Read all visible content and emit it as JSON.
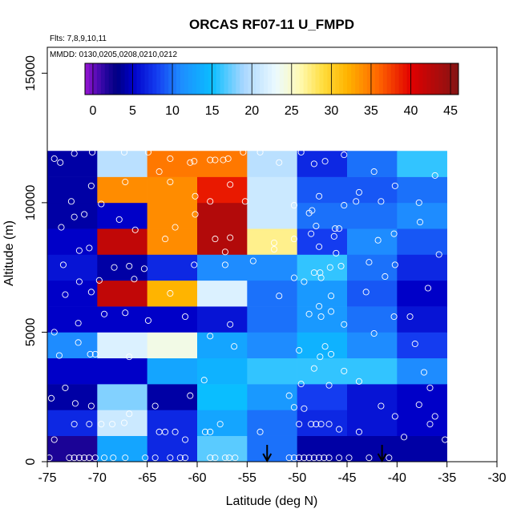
{
  "chart_data": {
    "type": "heatmap",
    "title": "ORCAS RF07-11 U_FMPD",
    "flights_note": "Flts: 7,8,9,10,11",
    "dates_note": "MMDD: 0130,0205,0208,0210,0212",
    "xlabel": "Latitude (deg N)",
    "ylabel": "Altitude (m)",
    "xlim": [
      -75,
      -30
    ],
    "ylim": [
      0,
      16000
    ],
    "x_ticks": [
      -75,
      -70,
      -65,
      -60,
      -55,
      -50,
      -45,
      -40,
      -35,
      -30
    ],
    "x_tick_labels": [
      "-75",
      "-70",
      "-65",
      "-60",
      "-55",
      "-50",
      "-45",
      "-40",
      "-35",
      "-30"
    ],
    "y_ticks": [
      0,
      5000,
      10000,
      15000
    ],
    "y_tick_labels": [
      "0",
      "5000",
      "10000",
      "15000"
    ],
    "colorbar": {
      "range": [
        -1,
        46
      ],
      "ticks": [
        0,
        5,
        10,
        15,
        20,
        25,
        30,
        35,
        40,
        45
      ],
      "tick_labels": [
        "0",
        "5",
        "10",
        "15",
        "20",
        "25",
        "30",
        "35",
        "40",
        "45"
      ]
    },
    "lat_bins": [
      -75,
      -70,
      -65,
      -60,
      -55,
      -50,
      -45,
      -40,
      -35
    ],
    "alt_bin_size": 1000,
    "alt_bins_count": 12,
    "grid_values_by_altitude_bin": [
      [
        2,
        13,
        7,
        17,
        10,
        4,
        4,
        4
      ],
      [
        7,
        21,
        7,
        13,
        10,
        7,
        6,
        5
      ],
      [
        4,
        18,
        4,
        15,
        12,
        8,
        6,
        5
      ],
      [
        5,
        5,
        13,
        14,
        16,
        16,
        16,
        11
      ],
      [
        11,
        22,
        24,
        13,
        11,
        14,
        11,
        8
      ],
      [
        5,
        5,
        5,
        6,
        10,
        12,
        10,
        6
      ],
      [
        5,
        42,
        32,
        22,
        10,
        12,
        9,
        5
      ],
      [
        6,
        4,
        7,
        11,
        11,
        16,
        10,
        7
      ],
      [
        5,
        42,
        34,
        43,
        27,
        8,
        11,
        9
      ],
      [
        4,
        5,
        34,
        43,
        21,
        10,
        10,
        11
      ],
      [
        4,
        34,
        34,
        39,
        21,
        9,
        9,
        10
      ],
      [
        4,
        20,
        35,
        35,
        20,
        7,
        10,
        16
      ]
    ],
    "arrow_latitudes": [
      -53,
      -41.5
    ],
    "samples": [
      [
        -74.8,
        150
      ],
      [
        -74.3,
        850
      ],
      [
        -72.8,
        150
      ],
      [
        -72.3,
        150
      ],
      [
        -71.8,
        150
      ],
      [
        -71.3,
        150
      ],
      [
        -70.8,
        150
      ],
      [
        -70.2,
        150
      ],
      [
        -69.3,
        150
      ],
      [
        -68.4,
        150
      ],
      [
        -67.2,
        150
      ],
      [
        -65.2,
        150
      ],
      [
        -64.2,
        150
      ],
      [
        -62.7,
        150
      ],
      [
        -61.7,
        150
      ],
      [
        -61.2,
        150
      ],
      [
        -58.7,
        150
      ],
      [
        -58.2,
        150
      ],
      [
        -57.2,
        150
      ],
      [
        -56.8,
        150
      ],
      [
        -56.2,
        150
      ],
      [
        -50.8,
        150
      ],
      [
        -50.3,
        150
      ],
      [
        -49.8,
        150
      ],
      [
        -49.3,
        150
      ],
      [
        -48.8,
        150
      ],
      [
        -48.3,
        150
      ],
      [
        -47.8,
        150
      ],
      [
        -47.3,
        150
      ],
      [
        -46.8,
        150
      ],
      [
        -45.8,
        150
      ],
      [
        -44.8,
        150
      ],
      [
        -42.8,
        150
      ],
      [
        -40.8,
        150
      ],
      [
        -63.8,
        1150
      ],
      [
        -63.2,
        1150
      ],
      [
        -62.2,
        1150
      ],
      [
        -61.2,
        850
      ],
      [
        -59.2,
        1150
      ],
      [
        -72.3,
        1450
      ],
      [
        -70.8,
        1450
      ],
      [
        -69.6,
        1450
      ],
      [
        -68.5,
        1450
      ],
      [
        -67.3,
        1500
      ],
      [
        -66.8,
        1850
      ],
      [
        -58.7,
        1150
      ],
      [
        -57.7,
        1450
      ],
      [
        -53.7,
        1150
      ],
      [
        -49.8,
        1450
      ],
      [
        -49.3,
        2050
      ],
      [
        -48.6,
        1450
      ],
      [
        -48.1,
        1450
      ],
      [
        -47.6,
        1450
      ],
      [
        -46.8,
        1450
      ],
      [
        -45.8,
        1250
      ],
      [
        -43.8,
        1150
      ],
      [
        -40.2,
        1750
      ],
      [
        -39.3,
        950
      ],
      [
        -36.2,
        1750
      ],
      [
        -36.7,
        1450
      ],
      [
        -35.2,
        850
      ],
      [
        -74.6,
        2450
      ],
      [
        -73.2,
        2850
      ],
      [
        -72.2,
        2250
      ],
      [
        -70.6,
        2150
      ],
      [
        -64.2,
        2150
      ],
      [
        -60.7,
        2550
      ],
      [
        -59.3,
        3150
      ],
      [
        -50.8,
        2550
      ],
      [
        -50.3,
        2100
      ],
      [
        -49.6,
        3000
      ],
      [
        -48.3,
        3600
      ],
      [
        -46.8,
        2950
      ],
      [
        -45.3,
        3500
      ],
      [
        -43.8,
        3100
      ],
      [
        -41.6,
        2150
      ],
      [
        -37.3,
        3450
      ],
      [
        -36.7,
        2850
      ],
      [
        -37.8,
        2200
      ],
      [
        -73.8,
        4100
      ],
      [
        -71.9,
        4600
      ],
      [
        -70.7,
        4150
      ],
      [
        -70.2,
        4150
      ],
      [
        -66.8,
        4050
      ],
      [
        -58.7,
        4850
      ],
      [
        -56.3,
        4450
      ],
      [
        -49.8,
        4300
      ],
      [
        -47.7,
        4050
      ],
      [
        -47.2,
        4450
      ],
      [
        -46.6,
        4150
      ],
      [
        -38.2,
        4550
      ],
      [
        -42.3,
        4950
      ],
      [
        -74.3,
        5000
      ],
      [
        -71.9,
        5350
      ],
      [
        -69.3,
        5700
      ],
      [
        -67.2,
        5750
      ],
      [
        -64.9,
        5450
      ],
      [
        -61.2,
        5600
      ],
      [
        -56.7,
        5300
      ],
      [
        -48.8,
        5700
      ],
      [
        -47.6,
        5600
      ],
      [
        -47.8,
        6000
      ],
      [
        -46.6,
        5800
      ],
      [
        -45.3,
        5300
      ],
      [
        -40.3,
        5600
      ],
      [
        -38.7,
        5600
      ],
      [
        -73.2,
        6450
      ],
      [
        -71.8,
        6950
      ],
      [
        -70.6,
        6550
      ],
      [
        -69.8,
        7000
      ],
      [
        -66.3,
        7050
      ],
      [
        -62.7,
        6500
      ],
      [
        -51.8,
        6400
      ],
      [
        -49.3,
        6950
      ],
      [
        -48.3,
        7300
      ],
      [
        -47.6,
        7100
      ],
      [
        -46.6,
        6400
      ],
      [
        -43.1,
        6550
      ],
      [
        -41.2,
        7150
      ],
      [
        -36.9,
        6700
      ],
      [
        -73.4,
        7600
      ],
      [
        -71.8,
        8150
      ],
      [
        -70.8,
        8250
      ],
      [
        -68.3,
        7500
      ],
      [
        -66.8,
        7550
      ],
      [
        -65.3,
        7450
      ],
      [
        -60.3,
        7600
      ],
      [
        -57.2,
        7600
      ],
      [
        -54.4,
        7750
      ],
      [
        -52.3,
        8200
      ],
      [
        -50.3,
        7100
      ],
      [
        -47.7,
        7300
      ],
      [
        -46.7,
        7500
      ],
      [
        -45.6,
        7550
      ],
      [
        -42.8,
        7700
      ],
      [
        -40.2,
        7600
      ],
      [
        -35.8,
        8000
      ],
      [
        -73.6,
        9050
      ],
      [
        -72.3,
        9450
      ],
      [
        -71.3,
        9550
      ],
      [
        -69.6,
        9950
      ],
      [
        -67.8,
        9350
      ],
      [
        -66.2,
        8950
      ],
      [
        -63.2,
        8600
      ],
      [
        -62.2,
        9050
      ],
      [
        -60.2,
        9550
      ],
      [
        -58.2,
        8600
      ],
      [
        -57.2,
        8100
      ],
      [
        -56.7,
        8650
      ],
      [
        -52.3,
        8450
      ],
      [
        -50.3,
        8600
      ],
      [
        -48.6,
        8800
      ],
      [
        -47.8,
        8300
      ],
      [
        -46.3,
        8700
      ],
      [
        -46.1,
        8050
      ],
      [
        -41.9,
        8550
      ],
      [
        -40.3,
        8800
      ],
      [
        -37.7,
        9250
      ],
      [
        -72.6,
        10050
      ],
      [
        -70.6,
        10650
      ],
      [
        -67.2,
        10800
      ],
      [
        -63.8,
        11200
      ],
      [
        -62.7,
        10800
      ],
      [
        -60.2,
        10250
      ],
      [
        -58.7,
        10050
      ],
      [
        -56.7,
        10700
      ],
      [
        -55.2,
        10050
      ],
      [
        -50.3,
        9900
      ],
      [
        -48.8,
        9600
      ],
      [
        -47.8,
        10250
      ],
      [
        -45.3,
        9900
      ],
      [
        -43.8,
        10400
      ],
      [
        -41.6,
        10050
      ],
      [
        -37.8,
        10000
      ],
      [
        -36.2,
        11050
      ],
      [
        -74.3,
        11700
      ],
      [
        -73.7,
        11550
      ],
      [
        -72.3,
        11900
      ],
      [
        -70.5,
        11950
      ],
      [
        -67.3,
        11950
      ],
      [
        -64.9,
        11950
      ],
      [
        -62.7,
        11700
      ],
      [
        -60.7,
        11550
      ],
      [
        -60.3,
        11600
      ],
      [
        -58.7,
        11650
      ],
      [
        -58.2,
        11650
      ],
      [
        -57.4,
        11650
      ],
      [
        -56.9,
        11700
      ],
      [
        -55.4,
        11950
      ],
      [
        -53.7,
        11950
      ],
      [
        -51.8,
        11550
      ],
      [
        -49.6,
        11950
      ],
      [
        -48.3,
        11500
      ],
      [
        -47.2,
        11600
      ],
      [
        -45.3,
        11850
      ],
      [
        -42.3,
        11200
      ],
      [
        -40.2,
        10650
      ],
      [
        -44.1,
        10050
      ],
      [
        -48.5,
        9700
      ],
      [
        -48.1,
        9100
      ],
      [
        -46.2,
        9000
      ],
      [
        -45.8,
        9000
      ]
    ]
  }
}
